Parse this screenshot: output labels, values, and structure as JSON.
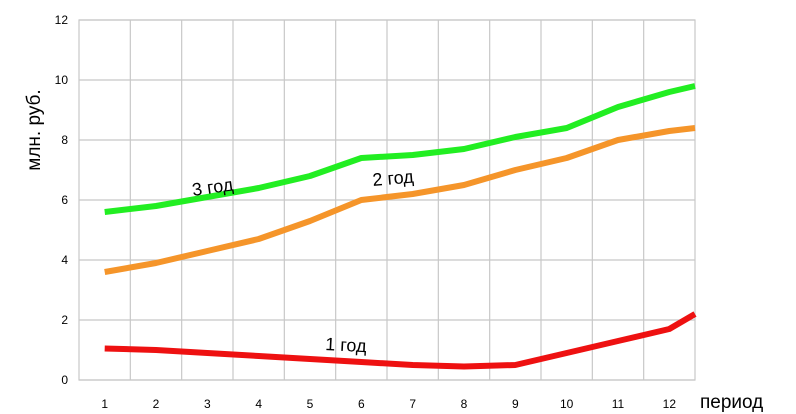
{
  "chart_data": {
    "type": "line",
    "xlabel": "период",
    "ylabel": "млн. руб.",
    "categories": [
      "1",
      "2",
      "3",
      "4",
      "5",
      "6",
      "7",
      "8",
      "9",
      "10",
      "11",
      "12"
    ],
    "ylim": [
      0,
      12
    ],
    "yticks": [
      "0",
      "2",
      "4",
      "6",
      "8",
      "10",
      "12"
    ],
    "grid": true,
    "series": [
      {
        "name": "3 год",
        "color": "#22ee22",
        "x": [
          0.5,
          1.5,
          2.5,
          3.5,
          4.5,
          5.5,
          6.5,
          7.5,
          8.5,
          9.5,
          10.5,
          11.5,
          12.5
        ],
        "values": [
          5.6,
          5.8,
          6.1,
          6.4,
          6.8,
          7.4,
          7.5,
          7.7,
          8.1,
          8.4,
          9.1,
          9.6,
          9.8
        ]
      },
      {
        "name": "2 год",
        "color": "#f5952a",
        "x": [
          0.5,
          1.5,
          2.5,
          3.5,
          4.5,
          5.5,
          6.5,
          7.5,
          8.5,
          9.5,
          10.5,
          11.5,
          12.5
        ],
        "values": [
          3.6,
          3.9,
          4.3,
          4.7,
          5.3,
          6.0,
          6.2,
          6.5,
          7.0,
          7.4,
          8.0,
          8.3,
          8.4
        ]
      },
      {
        "name": "1 год",
        "color": "#ee1111",
        "x": [
          0.5,
          1.5,
          2.5,
          3.5,
          4.5,
          5.5,
          6.5,
          7.5,
          8.5,
          9.5,
          10.5,
          11.5,
          12.5
        ],
        "values": [
          1.05,
          1.0,
          0.9,
          0.8,
          0.7,
          0.6,
          0.5,
          0.45,
          0.5,
          0.9,
          1.3,
          1.7,
          2.2
        ]
      }
    ]
  }
}
